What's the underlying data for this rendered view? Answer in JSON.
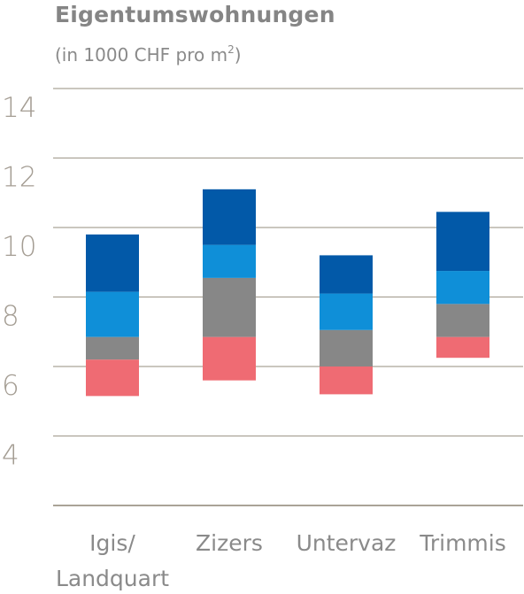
{
  "title": "Eigentumswohnungen",
  "subtitle": "(in 1000 CHF pro m",
  "subtitle_sup": "2",
  "subtitle_end": ")",
  "colors": {
    "grid": "#aaa397",
    "tick_text": "#a49d93",
    "category_text": "#8a8a8a",
    "segments": [
      "#ef6b73",
      "#878787",
      "#0f8fd8",
      "#0259a8"
    ]
  },
  "chart_data": {
    "type": "bar",
    "stacked": true,
    "floating": true,
    "title": "Eigentumswohnungen",
    "subtitle": "(in 1000 CHF pro m2)",
    "ylim": [
      2,
      14
    ],
    "yticks": [
      "14",
      "12",
      "10",
      "8",
      "6",
      "4"
    ],
    "ytick_values": [
      14,
      12,
      10,
      8,
      6,
      4
    ],
    "grid": true,
    "categories": [
      [
        "Igis/",
        "Landquart"
      ],
      [
        "Zizers"
      ],
      [
        "Untervaz"
      ],
      [
        "Trimmis"
      ]
    ],
    "bars": [
      {
        "boundaries": [
          5.15,
          6.2,
          6.85,
          8.15,
          9.8
        ]
      },
      {
        "boundaries": [
          5.6,
          6.85,
          8.55,
          9.5,
          11.1
        ]
      },
      {
        "boundaries": [
          5.2,
          6.0,
          7.05,
          8.1,
          9.2
        ]
      },
      {
        "boundaries": [
          6.25,
          6.85,
          7.8,
          8.75,
          10.45
        ]
      }
    ]
  }
}
